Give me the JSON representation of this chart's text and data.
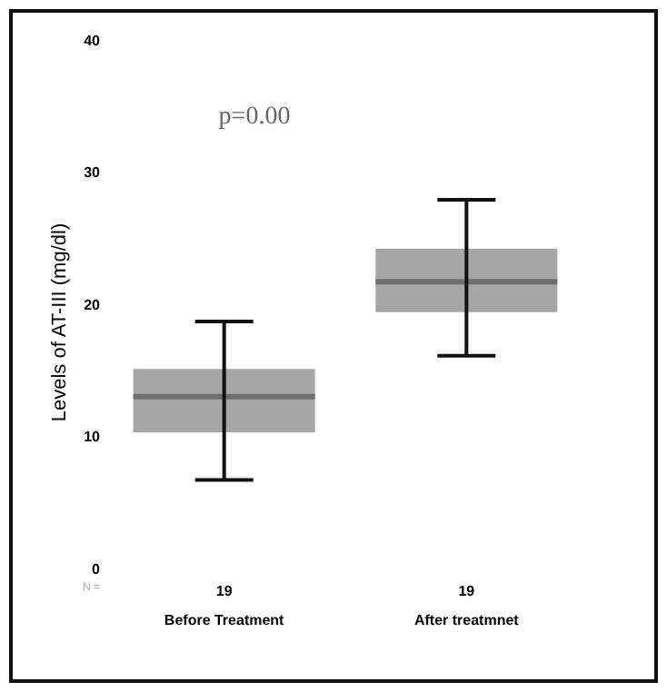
{
  "chart_data": {
    "type": "box",
    "ylabel": "Levels of AT-III (mg/dl)",
    "categories": [
      "Before Treatment",
      "After treatmnet"
    ],
    "color": "#a6a6a6",
    "boxes": [
      {
        "low": 6.7,
        "q1": 10.3,
        "median": 13,
        "q3": 15.1,
        "high": 18.7
      },
      {
        "low": 16.1,
        "q1": 19.4,
        "median": 21.7,
        "q3": 24.2,
        "high": 27.9
      }
    ],
    "ylim": [
      0,
      40
    ],
    "yticks": [
      0,
      10,
      20,
      30,
      40
    ],
    "annotations": [
      "p=0.00",
      "N =",
      "19",
      "19"
    ]
  }
}
